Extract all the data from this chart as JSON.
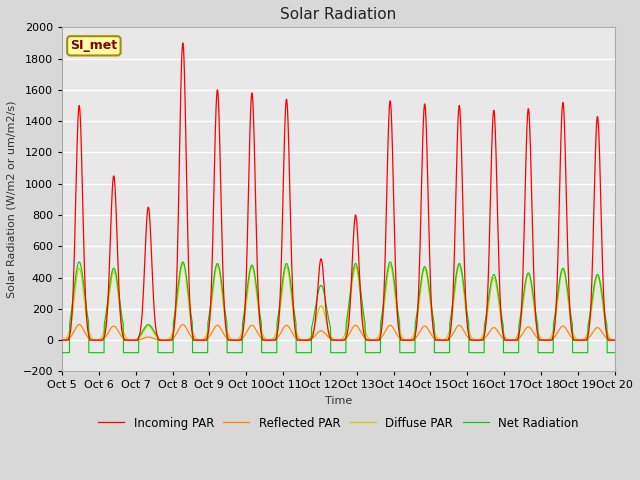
{
  "title": "Solar Radiation",
  "ylabel": "Solar Radiation (W/m2 or um/m2/s)",
  "xlabel": "Time",
  "ylim": [
    -200,
    2000
  ],
  "x_tick_labels": [
    "Oct 5",
    "Oct 6",
    "Oct 7",
    "Oct 8",
    "Oct 9",
    "Oct 10",
    "Oct 11",
    "Oct 12",
    "Oct 13",
    "Oct 14",
    "Oct 15",
    "Oct 16",
    "Oct 17",
    "Oct 18",
    "Oct 19",
    "Oct 20"
  ],
  "annotation_text": "SI_met",
  "legend_labels": [
    "Incoming PAR",
    "Reflected PAR",
    "Diffuse PAR",
    "Net Radiation"
  ],
  "colors": {
    "incoming": "#ff0000",
    "reflected": "#ff8800",
    "diffuse": "#cccc00",
    "net": "#00cc00"
  },
  "bg_color": "#d8d8d8",
  "plot_bg": "#e8e8e8",
  "grid_color": "#ffffff",
  "title_fontsize": 11,
  "label_fontsize": 8,
  "tick_fontsize": 8,
  "incoming_peaks": [
    1500,
    1050,
    850,
    1900,
    1600,
    1580,
    1540,
    520,
    800,
    1530,
    1510,
    1500,
    1470,
    1480,
    1520,
    1430
  ],
  "net_peaks": [
    500,
    460,
    100,
    500,
    490,
    480,
    490,
    350,
    490,
    500,
    470,
    490,
    420,
    430,
    460,
    420
  ],
  "diff_peaks": [
    460,
    440,
    90,
    490,
    480,
    470,
    470,
    220,
    470,
    480,
    460,
    480,
    400,
    420,
    450,
    410
  ],
  "refl_peaks": [
    100,
    90,
    20,
    100,
    95,
    95,
    95,
    60,
    95,
    95,
    90,
    95,
    80,
    85,
    90,
    80
  ]
}
